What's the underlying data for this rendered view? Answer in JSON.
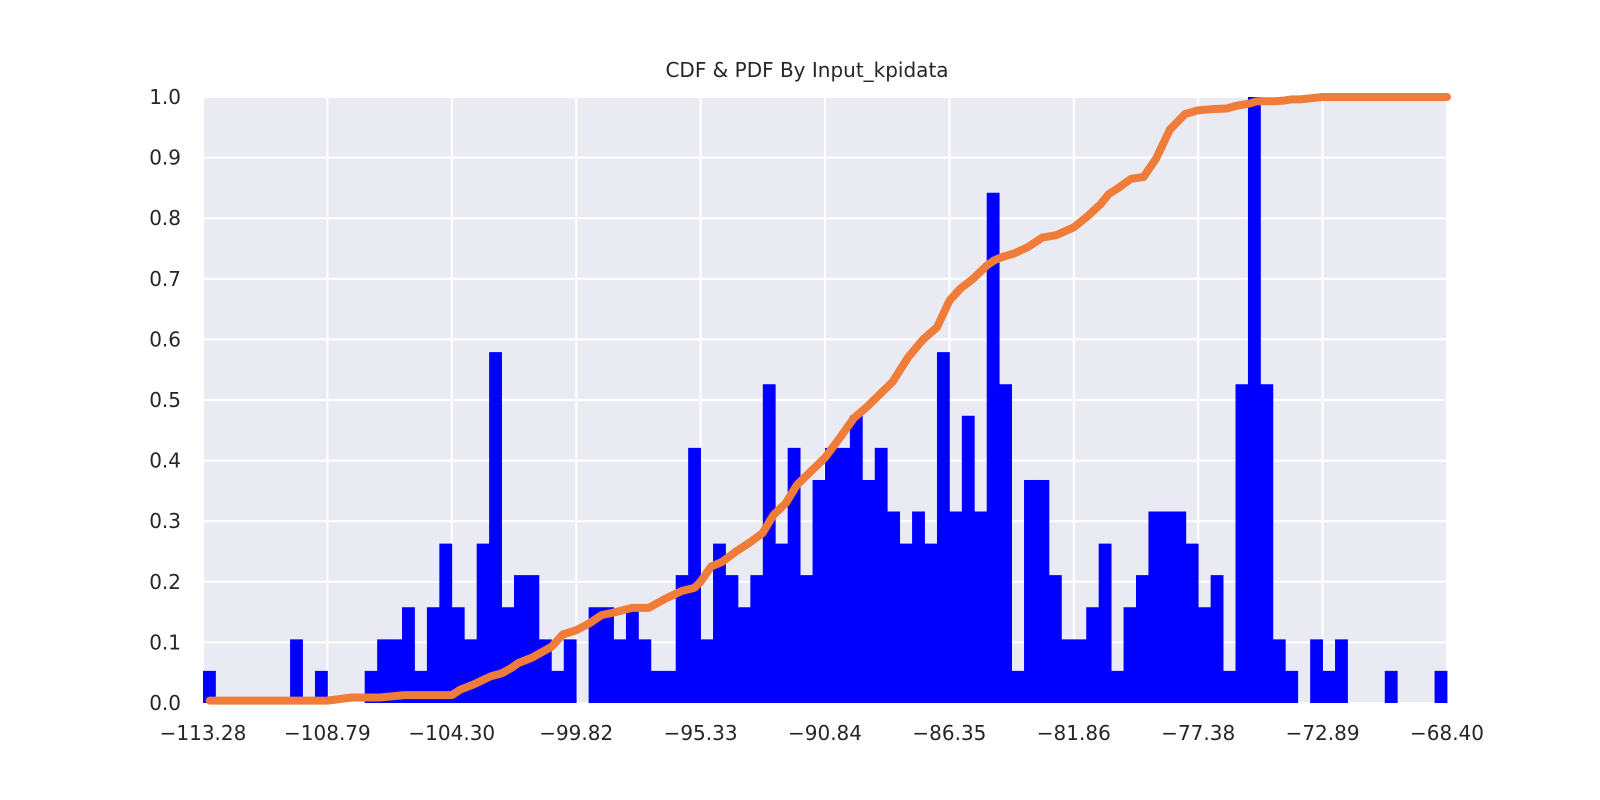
{
  "chart_data": {
    "type": "bar",
    "title": "CDF & PDF By Input_kpidata",
    "xlabel": "",
    "ylabel": "",
    "xlim": [
      -113.28,
      -68.4
    ],
    "ylim": [
      0.0,
      1.0
    ],
    "grid": true,
    "background": "#eaeaf2",
    "colors": {
      "pdf": "#0000ff",
      "cdf": "#f07c3a",
      "grid": "#ffffff",
      "text": "#262626"
    },
    "x_tick_labels": [
      "−113.28",
      "−108.79",
      "−104.30",
      "−99.82",
      "−95.33",
      "−90.84",
      "−86.35",
      "−81.86",
      "−77.38",
      "−72.89",
      "−68.40"
    ],
    "y_tick_labels": [
      "0.0",
      "0.1",
      "0.2",
      "0.3",
      "0.4",
      "0.5",
      "0.6",
      "0.7",
      "0.8",
      "0.9",
      "1.0"
    ],
    "pdf": {
      "bins": 100,
      "values": [
        0.053,
        0,
        0,
        0,
        0,
        0,
        0,
        0.105,
        0,
        0.053,
        0,
        0,
        0,
        0.053,
        0.105,
        0.105,
        0.158,
        0.053,
        0.158,
        0.263,
        0.158,
        0.105,
        0.263,
        0.579,
        0.158,
        0.211,
        0.211,
        0.105,
        0.053,
        0.105,
        0,
        0.158,
        0.158,
        0.105,
        0.158,
        0.105,
        0.053,
        0.053,
        0.211,
        0.421,
        0.105,
        0.263,
        0.211,
        0.158,
        0.211,
        0.526,
        0.263,
        0.421,
        0.211,
        0.368,
        0.421,
        0.421,
        0.474,
        0.368,
        0.421,
        0.316,
        0.263,
        0.316,
        0.263,
        0.579,
        0.316,
        0.474,
        0.316,
        0.842,
        0.526,
        0.053,
        0.368,
        0.368,
        0.211,
        0.105,
        0.105,
        0.158,
        0.263,
        0.053,
        0.158,
        0.211,
        0.316,
        0.316,
        0.316,
        0.263,
        0.158,
        0.211,
        0.053,
        0.526,
        1.0,
        0.526,
        0.105,
        0.053,
        0,
        0.105,
        0.053,
        0.105,
        0,
        0,
        0,
        0.053,
        0,
        0,
        0,
        0.053
      ]
    },
    "cdf": {
      "x": [
        -113.04,
        -108.79,
        -107.91,
        -106.9,
        -106.0,
        -105.4,
        -104.75,
        -104.3,
        -104.0,
        -103.5,
        -102.9,
        -102.5,
        -102.15,
        -101.9,
        -101.4,
        -100.7,
        -100.3,
        -99.82,
        -99.32,
        -98.9,
        -98.4,
        -97.8,
        -97.2,
        -96.6,
        -96.0,
        -95.55,
        -95.33,
        -94.95,
        -94.55,
        -94.05,
        -93.55,
        -93.1,
        -92.7,
        -92.25,
        -91.85,
        -91.4,
        -90.84,
        -90.3,
        -89.8,
        -89.3,
        -88.85,
        -88.4,
        -87.85,
        -87.3,
        -86.8,
        -86.35,
        -85.95,
        -85.5,
        -85.0,
        -84.75,
        -84.45,
        -84.0,
        -83.5,
        -83.0,
        -82.5,
        -81.86,
        -81.4,
        -80.9,
        -80.6,
        -80.25,
        -79.8,
        -79.35,
        -78.9,
        -78.4,
        -77.85,
        -77.38,
        -76.85,
        -76.35,
        -75.95,
        -75.55,
        -75.25,
        -75.0,
        -74.65,
        -74.3,
        -74.0,
        -73.7,
        -73.3,
        -72.89,
        -72.4,
        -71.9,
        -71.4,
        -70.9,
        -70.4,
        -69.9,
        -69.4,
        -68.9,
        -68.4
      ],
      "y": [
        0.004,
        0.004,
        0.009,
        0.009,
        0.013,
        0.013,
        0.013,
        0.013,
        0.022,
        0.031,
        0.044,
        0.049,
        0.058,
        0.066,
        0.075,
        0.093,
        0.113,
        0.12,
        0.132,
        0.145,
        0.15,
        0.157,
        0.157,
        0.172,
        0.185,
        0.19,
        0.2,
        0.225,
        0.233,
        0.25,
        0.265,
        0.28,
        0.31,
        0.33,
        0.36,
        0.38,
        0.405,
        0.438,
        0.47,
        0.49,
        0.51,
        0.53,
        0.57,
        0.6,
        0.62,
        0.664,
        0.684,
        0.7,
        0.722,
        0.73,
        0.736,
        0.742,
        0.753,
        0.768,
        0.772,
        0.785,
        0.802,
        0.823,
        0.84,
        0.85,
        0.865,
        0.868,
        0.898,
        0.946,
        0.972,
        0.978,
        0.98,
        0.981,
        0.986,
        0.989,
        0.993,
        0.993,
        0.993,
        0.994,
        0.996,
        0.996,
        0.998,
        1.0,
        1.0,
        1.0,
        1.0,
        1.0,
        1.0,
        1.0,
        1.0,
        1.0,
        1.0
      ]
    }
  }
}
